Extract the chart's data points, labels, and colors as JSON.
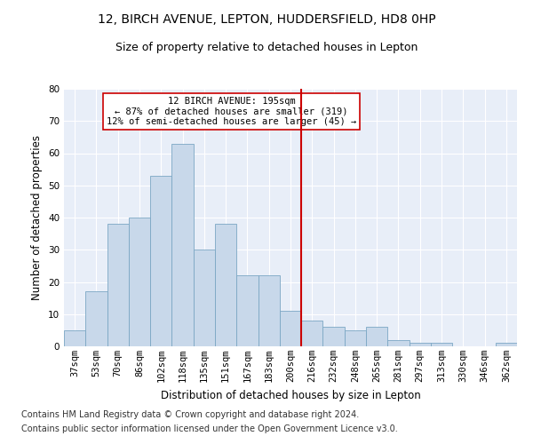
{
  "title1": "12, BIRCH AVENUE, LEPTON, HUDDERSFIELD, HD8 0HP",
  "title2": "Size of property relative to detached houses in Lepton",
  "xlabel": "Distribution of detached houses by size in Lepton",
  "ylabel": "Number of detached properties",
  "bar_labels": [
    "37sqm",
    "53sqm",
    "70sqm",
    "86sqm",
    "102sqm",
    "118sqm",
    "135sqm",
    "151sqm",
    "167sqm",
    "183sqm",
    "200sqm",
    "216sqm",
    "232sqm",
    "248sqm",
    "265sqm",
    "281sqm",
    "297sqm",
    "313sqm",
    "330sqm",
    "346sqm",
    "362sqm"
  ],
  "bar_values": [
    5,
    17,
    38,
    40,
    53,
    63,
    30,
    38,
    22,
    22,
    11,
    8,
    6,
    5,
    6,
    2,
    1,
    1,
    0,
    0,
    1
  ],
  "bar_color": "#c8d8ea",
  "bar_edgecolor": "#7ba7c4",
  "vline_x": 10.5,
  "vline_color": "#cc0000",
  "annotation_title": "12 BIRCH AVENUE: 195sqm",
  "annotation_line1": "← 87% of detached houses are smaller (319)",
  "annotation_line2": "12% of semi-detached houses are larger (45) →",
  "annotation_box_color": "#cc0000",
  "footer1": "Contains HM Land Registry data © Crown copyright and database right 2024.",
  "footer2": "Contains public sector information licensed under the Open Government Licence v3.0.",
  "ylim": [
    0,
    80
  ],
  "yticks": [
    0,
    10,
    20,
    30,
    40,
    50,
    60,
    70,
    80
  ],
  "bg_color": "#e8eef8",
  "grid_color": "#ffffff",
  "title1_fontsize": 10,
  "title2_fontsize": 9,
  "ylabel_fontsize": 8.5,
  "xlabel_fontsize": 8.5,
  "tick_fontsize": 7.5,
  "footer_fontsize": 7,
  "ann_fontsize": 7.5
}
